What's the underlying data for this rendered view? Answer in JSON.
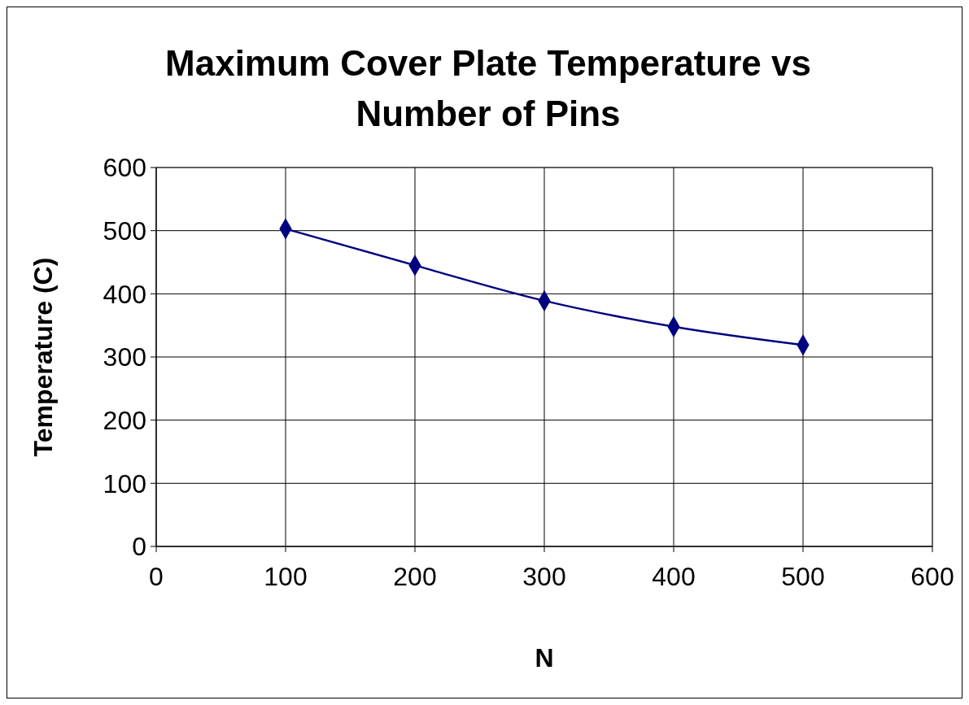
{
  "chart_data": {
    "type": "line",
    "title": "Maximum Cover Plate Temperature vs Number of Pins",
    "xlabel": "N",
    "ylabel": "Temperature (C)",
    "x": [
      100,
      200,
      300,
      400,
      500
    ],
    "series": [
      {
        "color": "#000080",
        "values": [
          503,
          445,
          389,
          348,
          319
        ]
      }
    ],
    "xlim": [
      0,
      600
    ],
    "xticks": [
      0,
      100,
      200,
      300,
      400,
      500,
      600
    ],
    "ylim": [
      0,
      600
    ],
    "yticks": [
      0,
      100,
      200,
      300,
      400,
      500,
      600
    ],
    "grid": true,
    "marker": "diamond",
    "line_style": "solid"
  }
}
